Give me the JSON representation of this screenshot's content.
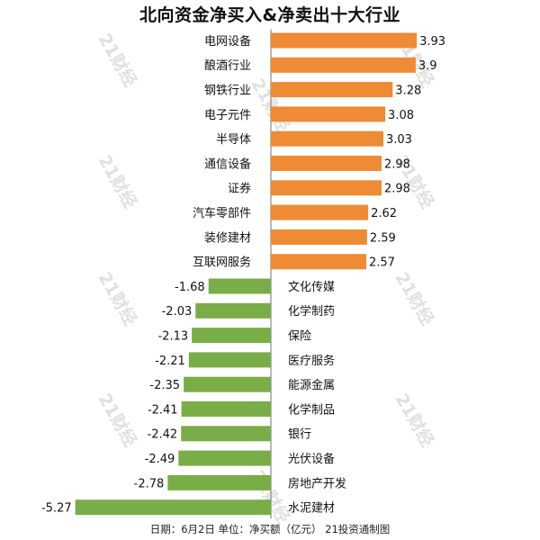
{
  "title": "北向资金净买入&净卖出十大行业",
  "footer": "日期：6月2日 单位：净买额（亿元） 21投资通制图",
  "watermark_text": "21财经",
  "colors": {
    "positive": "#ef8a35",
    "negative": "#79ad48",
    "axis": "#888888",
    "label": "#111111"
  },
  "chart_data": {
    "type": "bar",
    "orientation": "horizontal",
    "title": "北向资金净买入&净卖出十大行业",
    "xlabel": "",
    "ylabel": "",
    "unit": "亿元",
    "grid": false,
    "legend": "none",
    "xlim": [
      -5.27,
      3.93
    ],
    "categories": [
      "电网设备",
      "酿酒行业",
      "钢铁行业",
      "电子元件",
      "半导体",
      "通信设备",
      "证券",
      "汽车零部件",
      "装修建材",
      "互联网服务",
      "文化传媒",
      "化学制药",
      "保险",
      "医疗服务",
      "能源金属",
      "化学制品",
      "银行",
      "光伏设备",
      "房地产开发",
      "水泥建材"
    ],
    "values": [
      3.93,
      3.9,
      3.28,
      3.08,
      3.03,
      2.98,
      2.98,
      2.62,
      2.59,
      2.57,
      -1.68,
      -2.03,
      -2.13,
      -2.21,
      -2.35,
      -2.41,
      -2.42,
      -2.49,
      -2.78,
      -5.27
    ],
    "value_labels": [
      "3.93",
      "3.9",
      "3.28",
      "3.08",
      "3.03",
      "2.98",
      "2.98",
      "2.62",
      "2.59",
      "2.57",
      "-1.68",
      "-2.03",
      "-2.13",
      "-2.21",
      "-2.35",
      "-2.41",
      "-2.42",
      "-2.49",
      "-2.78",
      "-5.27"
    ]
  }
}
